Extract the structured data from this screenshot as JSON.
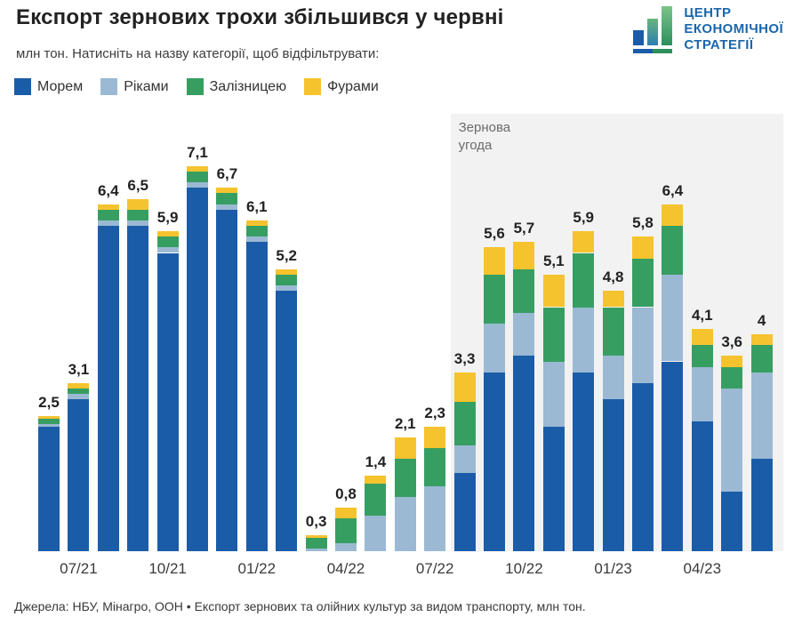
{
  "header": {
    "title": "Експорт зернових трохи збільшився у червні",
    "subtitle": "млн тон. Натисніть на назву категорії, щоб відфільтрувати:"
  },
  "logo": {
    "line1": "ЦЕНТР",
    "line2": "ЕКОНОМІЧНОЇ",
    "line3": "СТРАТЕГІЇ",
    "text_color": "#1a66ad"
  },
  "legend": [
    {
      "key": "sea",
      "label": "Морем",
      "color": "#1b5ca8"
    },
    {
      "key": "river",
      "label": "Ріками",
      "color": "#9bb9d3"
    },
    {
      "key": "rail",
      "label": "Залізницею",
      "color": "#379e62"
    },
    {
      "key": "truck",
      "label": "Фурами",
      "color": "#f5c32e"
    }
  ],
  "annotation": {
    "label": "Зернова угода",
    "start_month": "08/22",
    "end_month": "06/23",
    "background": "#f2f2f3",
    "text_color": "#6b6b6b"
  },
  "chart_data": {
    "type": "bar",
    "stacked": true,
    "unit": "млн тон",
    "title": "Експорт зернових трохи збільшився у червні",
    "xlabel": "",
    "ylabel": "млн тон",
    "ylim": [
      0,
      7.5
    ],
    "grid": false,
    "legend_position": "top",
    "categories": [
      "06/21",
      "07/21",
      "08/21",
      "09/21",
      "10/21",
      "11/21",
      "12/21",
      "01/22",
      "02/22",
      "03/22",
      "04/22",
      "05/22",
      "06/22",
      "07/22",
      "08/22",
      "09/22",
      "10/22",
      "11/22",
      "12/22",
      "01/23",
      "02/23",
      "03/23",
      "04/23",
      "05/23",
      "06/23"
    ],
    "x_tick_labels": [
      "07/21",
      "10/21",
      "01/22",
      "04/22",
      "07/22",
      "10/22",
      "01/23",
      "04/23"
    ],
    "totals": [
      2.5,
      3.1,
      6.4,
      6.5,
      5.9,
      7.1,
      6.7,
      6.1,
      5.2,
      0.3,
      0.8,
      1.4,
      2.1,
      2.3,
      3.3,
      5.6,
      5.7,
      5.1,
      5.9,
      4.8,
      5.8,
      6.4,
      4.1,
      3.6,
      4.0
    ],
    "total_labels": [
      "2,5",
      "3,1",
      "6,4",
      "6,5",
      "5,9",
      "7,1",
      "6,7",
      "6,1",
      "5,2",
      "0,3",
      "0,8",
      "1,4",
      "2,1",
      "2,3",
      "3,3",
      "5,6",
      "5,7",
      "5,1",
      "5,9",
      "4,8",
      "5,8",
      "6,4",
      "4,1",
      "3,6",
      "4"
    ],
    "series": [
      {
        "name": "Морем",
        "key": "sea",
        "values": [
          2.3,
          2.8,
          6.0,
          6.0,
          5.5,
          6.7,
          6.3,
          5.7,
          4.8,
          0.0,
          0.0,
          0.0,
          0.0,
          0.0,
          1.45,
          3.3,
          3.6,
          2.3,
          3.3,
          2.8,
          3.1,
          3.5,
          2.4,
          1.1,
          1.7
        ]
      },
      {
        "name": "Ріками",
        "key": "river",
        "values": [
          0.05,
          0.1,
          0.1,
          0.1,
          0.1,
          0.1,
          0.1,
          0.1,
          0.1,
          0.05,
          0.15,
          0.65,
          1.0,
          1.2,
          0.5,
          0.9,
          0.8,
          1.2,
          1.2,
          0.8,
          1.4,
          1.6,
          1.0,
          1.9,
          1.6
        ]
      },
      {
        "name": "Залізницею",
        "key": "rail",
        "values": [
          0.1,
          0.1,
          0.2,
          0.2,
          0.2,
          0.2,
          0.2,
          0.2,
          0.2,
          0.2,
          0.45,
          0.6,
          0.7,
          0.7,
          0.8,
          0.9,
          0.8,
          1.0,
          1.0,
          0.9,
          0.9,
          0.9,
          0.4,
          0.4,
          0.5
        ]
      },
      {
        "name": "Фурами",
        "key": "truck",
        "values": [
          0.05,
          0.1,
          0.1,
          0.2,
          0.1,
          0.1,
          0.1,
          0.1,
          0.1,
          0.05,
          0.2,
          0.15,
          0.4,
          0.4,
          0.55,
          0.5,
          0.5,
          0.6,
          0.4,
          0.3,
          0.4,
          0.4,
          0.3,
          0.2,
          0.2
        ]
      }
    ],
    "annotations": [
      {
        "label": "Зернова угода",
        "span_from": "08/22",
        "span_to": "06/23"
      }
    ]
  },
  "footer": {
    "source": "Джерела: НБУ, Мінагро, ООН • Експорт зернових та олійних культур за видом транспорту, млн тон."
  }
}
